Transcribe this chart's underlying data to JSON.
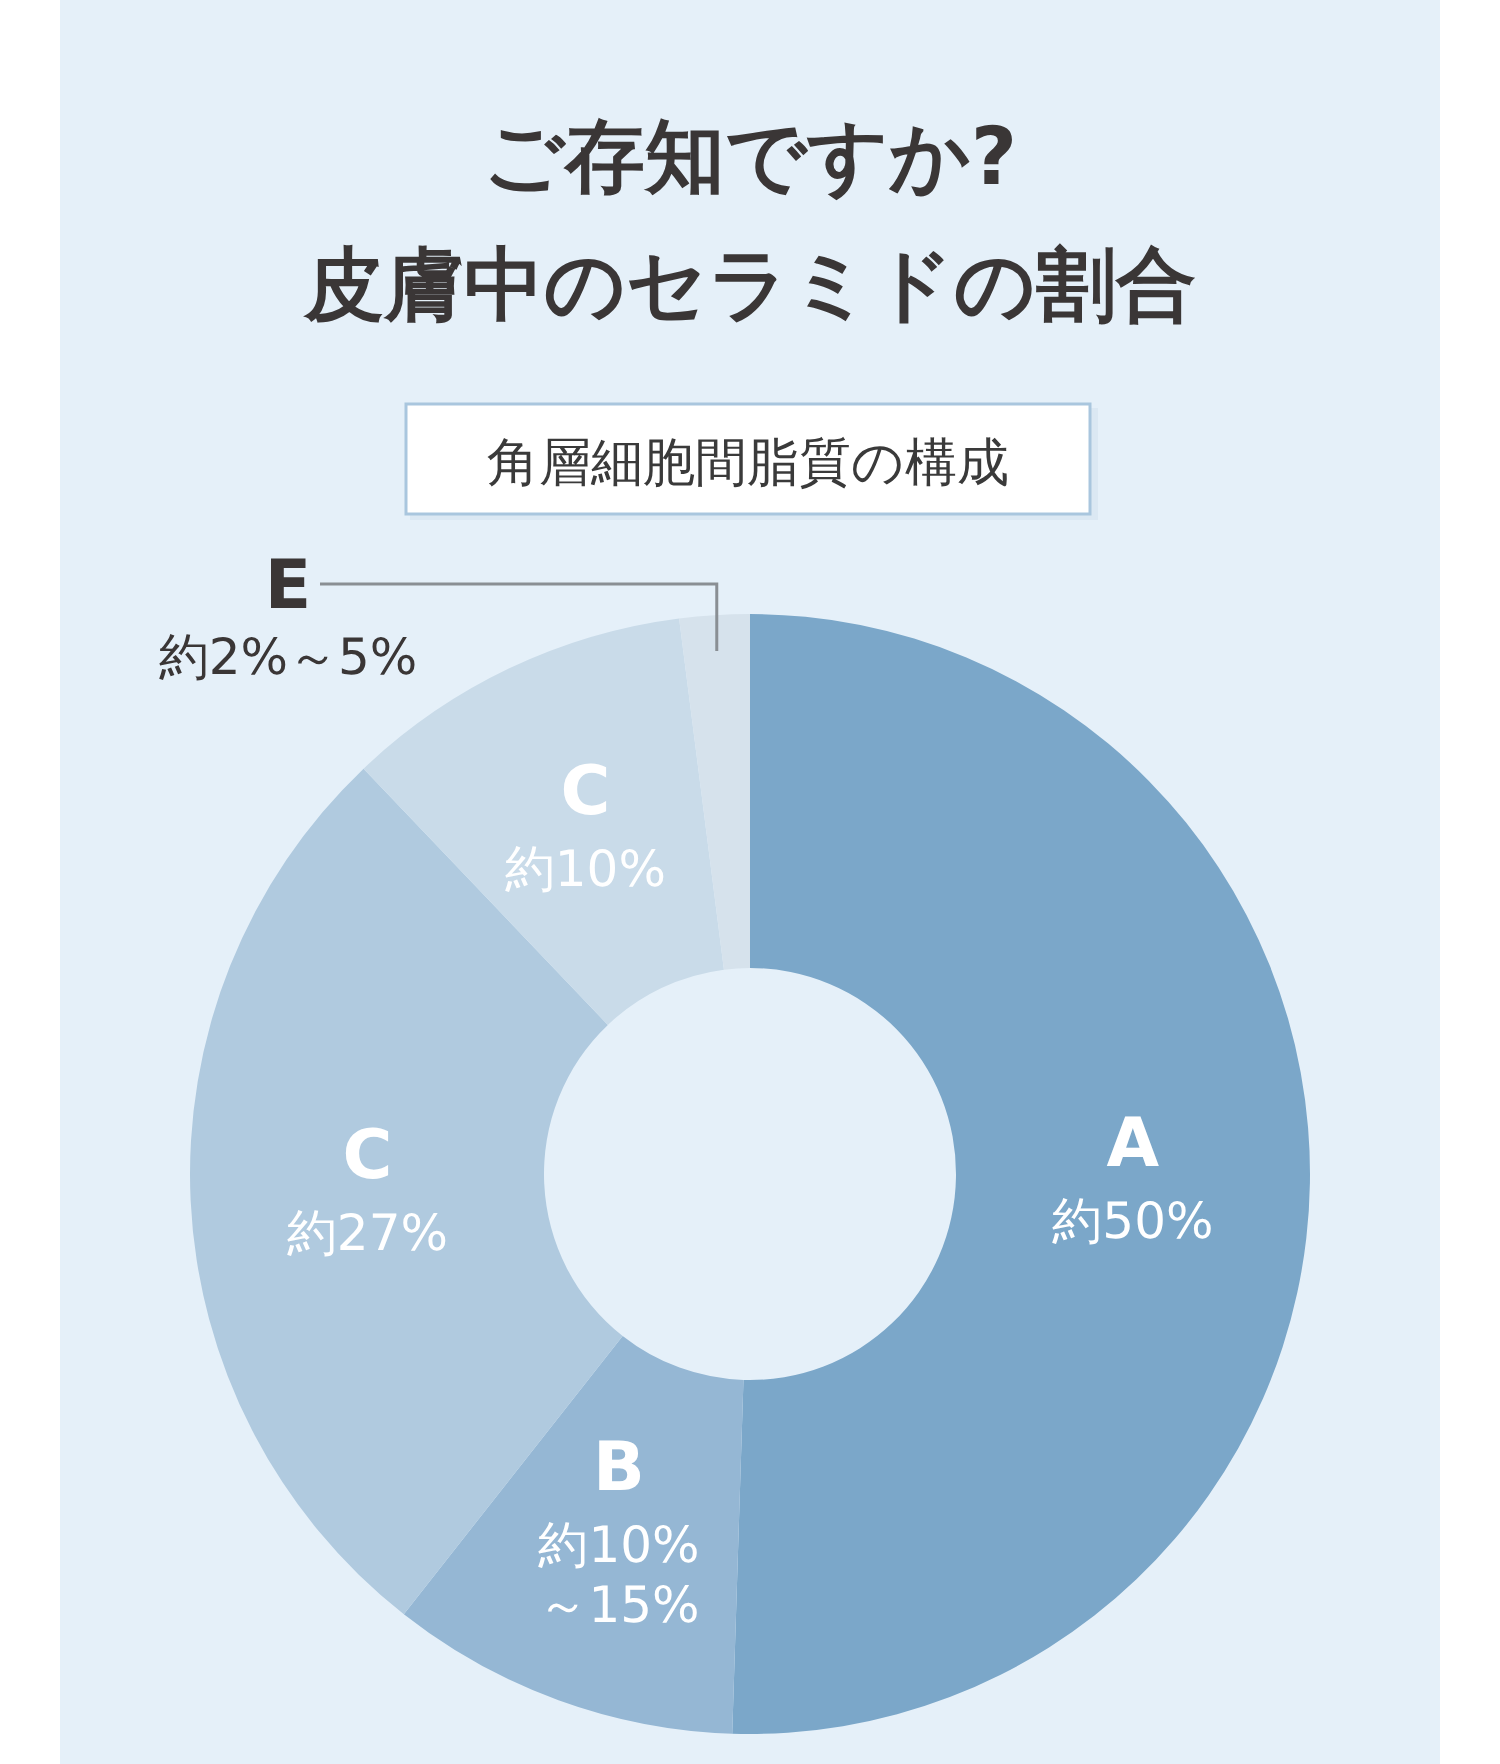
{
  "chart_data": {
    "type": "donut",
    "title": "ご存知ですか?\n皮膚中のセラミドの割合",
    "subtitle": "角層細胞間脂質の構成",
    "categories": [
      "A",
      "B",
      "C",
      "C",
      "E"
    ],
    "values": [
      50,
      10,
      27,
      10,
      2
    ],
    "value_labels": [
      "約50%",
      "約10%\n～15%",
      "約27%",
      "約10%",
      "約2%～5%"
    ],
    "colors": [
      "#7ba7c9",
      "#95b7d4",
      "#b0cadf",
      "#c9dbe9",
      "#d6e2ec"
    ]
  }
}
